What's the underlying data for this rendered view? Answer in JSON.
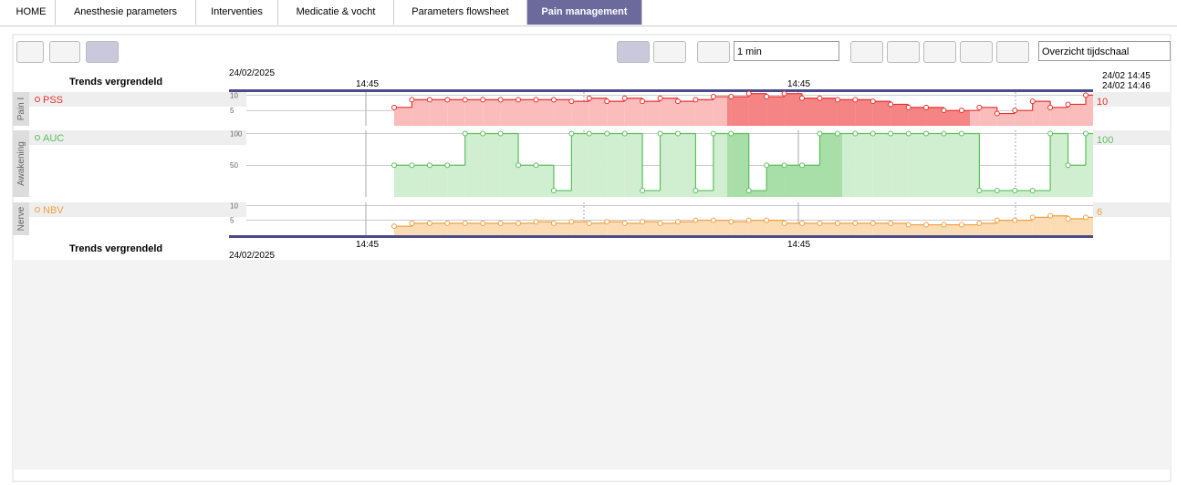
{
  "tabs": [
    "HOME",
    "Anesthesie parameters",
    "Interventies",
    "Medicatie & vocht",
    "Parameters flowsheet",
    "Pain management"
  ],
  "toolbar": {
    "interval": "1 min",
    "scale": "Overzicht tijdschaal"
  },
  "header": {
    "status": "Trends vergrendeld",
    "date": "24/02/2025",
    "time_marks": [
      "14:45",
      "14:45"
    ],
    "range": [
      "24/02 14:45",
      "24/02 14:46"
    ]
  },
  "footer": {
    "status": "Trends vergrendeld",
    "date": "24/02/2025",
    "time_marks": [
      "14:45",
      "14:45"
    ]
  },
  "panels": [
    {
      "label": "Pain I",
      "series": "PSS",
      "color": "#e8302f",
      "fill": "#fbbcbc",
      "dark": "#f58484",
      "ylim": [
        0,
        11
      ],
      "yticks": [
        5,
        10
      ],
      "values": [
        6,
        8.5,
        8.5,
        8.5,
        8.5,
        8.5,
        8.5,
        8.5,
        8.5,
        8.5,
        8,
        9,
        8,
        9,
        8,
        9,
        8,
        8.5,
        9.5,
        9.5,
        10.5,
        9.5,
        10.5,
        9,
        9,
        8.5,
        8.5,
        8,
        7,
        6,
        6,
        5,
        5,
        6,
        4,
        5,
        8,
        6,
        7,
        10
      ]
    },
    {
      "label": "Awakening",
      "series": "AUC",
      "color": "#5cbf5c",
      "fill": "#d0eed0",
      "dark": "#a8dea8",
      "ylim": [
        0,
        105
      ],
      "yticks": [
        50,
        100
      ],
      "values": [
        50,
        50,
        50,
        50,
        100,
        100,
        100,
        50,
        50,
        10,
        100,
        100,
        100,
        100,
        10,
        100,
        100,
        10,
        100,
        100,
        10,
        50,
        50,
        50,
        100,
        100,
        100,
        100,
        100,
        100,
        100,
        100,
        100,
        10,
        10,
        10,
        10,
        100,
        50,
        100
      ]
    },
    {
      "label": "Nerve",
      "series": "NBV",
      "color": "#f0a040",
      "fill": "#fbdcb5",
      "dark": "#fbdcb5",
      "ylim": [
        0,
        11
      ],
      "yticks": [
        5,
        10
      ],
      "values": [
        3,
        4,
        4,
        4,
        4,
        4,
        4,
        4,
        4.5,
        4,
        4.5,
        4,
        4.5,
        4,
        4.5,
        4,
        4.5,
        5,
        5,
        4.5,
        5,
        5,
        4,
        4,
        4,
        4,
        4,
        4,
        4,
        3.5,
        3.5,
        3.5,
        3.5,
        4,
        5,
        5,
        6,
        6.5,
        5.5,
        6
      ]
    }
  ]
}
